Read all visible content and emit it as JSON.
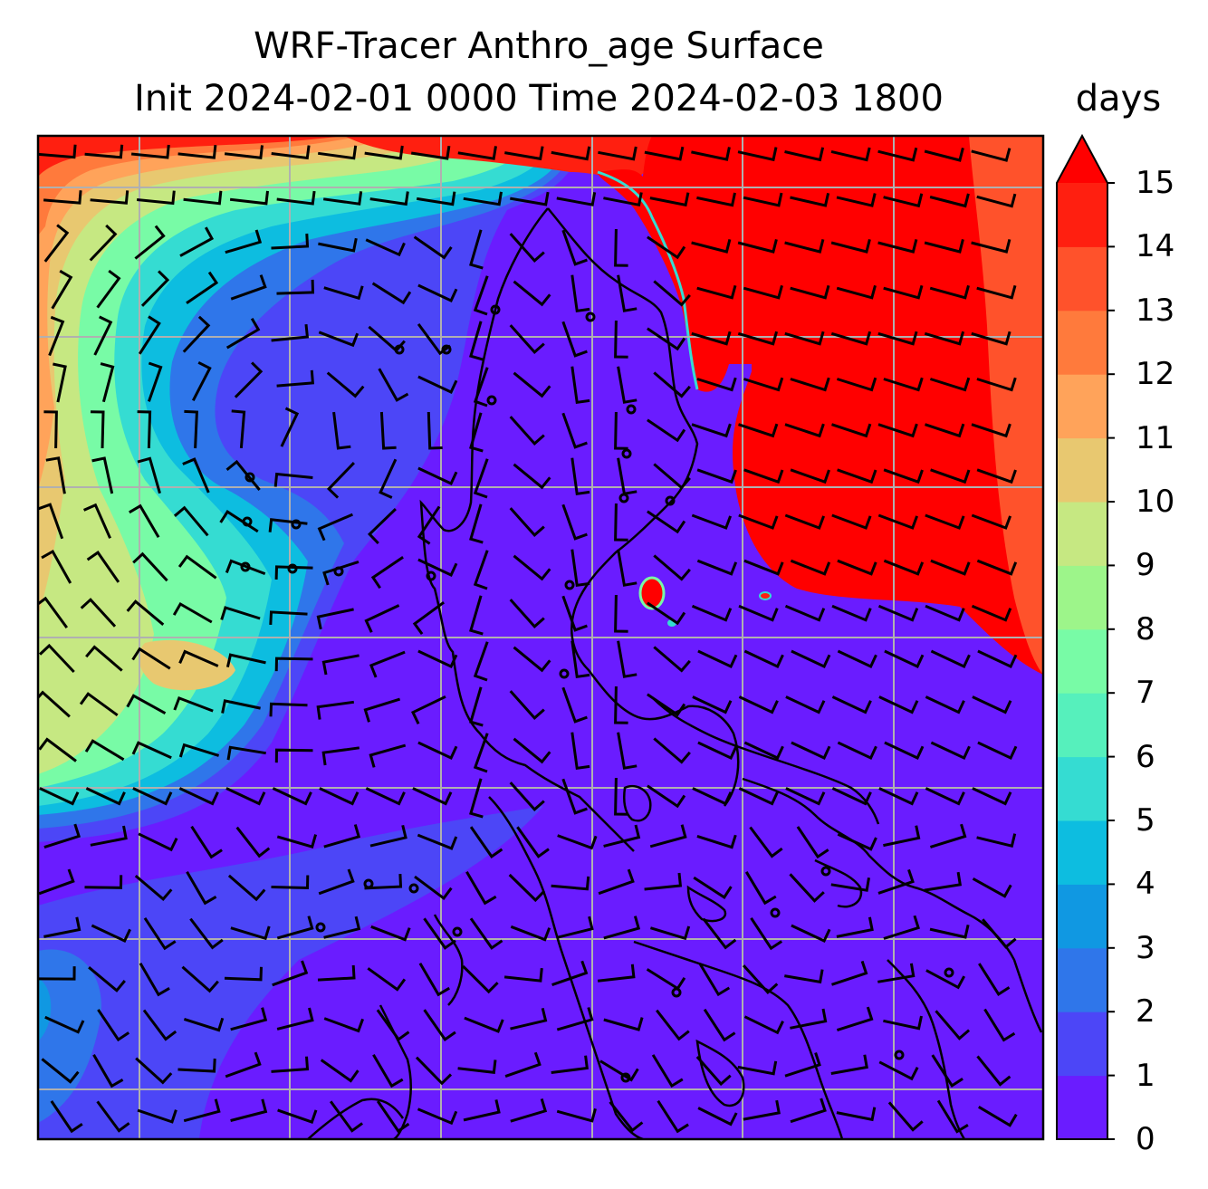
{
  "title": {
    "line1": "WRF-Tracer Anthro_age Surface",
    "line2": "Init 2024-02-01 0000 Time 2024-02-03 1800"
  },
  "colorbar": {
    "units": "days",
    "ticks": [
      "0",
      "1",
      "2",
      "3",
      "4",
      "5",
      "6",
      "7",
      "8",
      "9",
      "10",
      "11",
      "12",
      "13",
      "14",
      "15"
    ],
    "colors": [
      "#6a1cff",
      "#4c46f7",
      "#2f76ea",
      "#1098e2",
      "#0dbde0",
      "#35dcd2",
      "#56f0bc",
      "#78fba6",
      "#9df58a",
      "#c6e882",
      "#e8c870",
      "#ffa35a",
      "#ff7a3c",
      "#ff522b",
      "#ff1f10",
      "#ff0000"
    ],
    "extend": "max"
  },
  "map": {
    "field": "Anthro_age",
    "level": "Surface",
    "gridlines": true,
    "coastlines": true,
    "wind_barbs": true
  }
}
